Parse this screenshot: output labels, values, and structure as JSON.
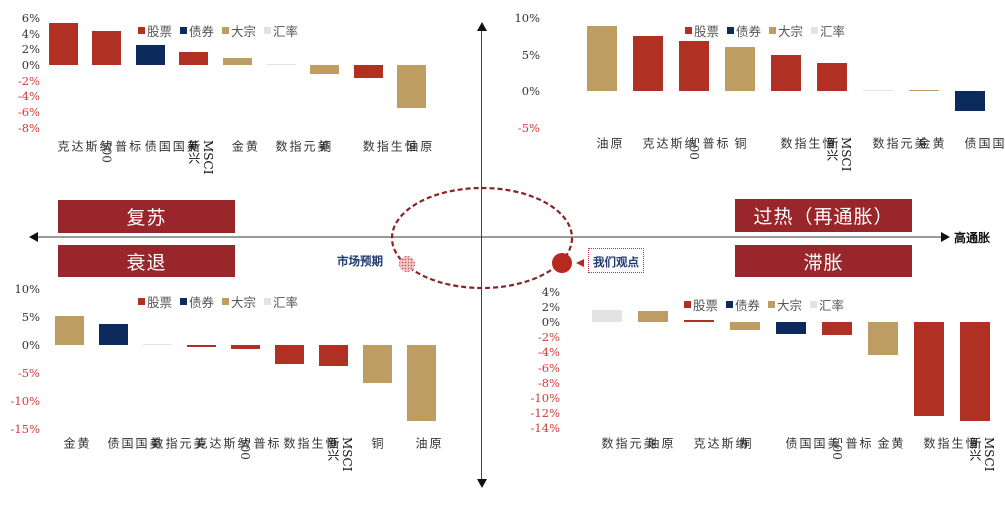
{
  "colors": {
    "stock": "#b03024",
    "bond": "#0d2a5c",
    "commodity": "#bd9d62",
    "fx": "#e3e3e3",
    "phase_bg": "#98262a",
    "neg_tick": "#d0393b",
    "pos_tick": "#333333",
    "ellipse": "#8b2226",
    "view_label": "#1f3a6e"
  },
  "axes": {
    "x_right_label": "高通胀"
  },
  "phases": {
    "recovery": "复苏",
    "overheat": "过热（再通胀）",
    "recession": "衰退",
    "stagflation": "滞胀"
  },
  "annotations": {
    "market_expectation": "市场预期",
    "our_view": "我们观点"
  },
  "legend": [
    {
      "label": "股票",
      "key": "stock"
    },
    {
      "label": "债券",
      "key": "bond"
    },
    {
      "label": "大宗",
      "key": "commodity"
    },
    {
      "label": "汇率",
      "key": "fx"
    }
  ],
  "chart_data": [
    {
      "type": "bar",
      "title": "复苏",
      "categories": [
        "纳斯达克",
        "标普500",
        "美国国债",
        "MSCI新兴",
        "黄金",
        "美元指数",
        "铜",
        "恒生指数",
        "原油"
      ],
      "asset_class": [
        "stock",
        "stock",
        "bond",
        "stock",
        "commodity",
        "fx",
        "commodity",
        "stock",
        "commodity"
      ],
      "values": [
        5.3,
        4.3,
        2.5,
        1.7,
        0.9,
        0.1,
        -1.2,
        -1.6,
        -5.5
      ],
      "yticks": [
        "6%",
        "4%",
        "2%",
        "0%",
        "-2%",
        "-4%",
        "-6%",
        "-8%"
      ],
      "ylim": [
        -8,
        6
      ],
      "xlabel": "",
      "ylabel": "",
      "legend_position": "top"
    },
    {
      "type": "bar",
      "title": "过热（再通胀）",
      "categories": [
        "原油",
        "纳斯达克",
        "标普500",
        "铜",
        "恒生指数",
        "MSCI新兴",
        "美元指数",
        "黄金",
        "美国国债"
      ],
      "asset_class": [
        "commodity",
        "stock",
        "stock",
        "commodity",
        "stock",
        "stock",
        "fx",
        "commodity",
        "bond"
      ],
      "values": [
        8.9,
        7.6,
        6.9,
        6.0,
        5.0,
        3.9,
        0.2,
        0.1,
        -2.7
      ],
      "yticks": [
        "10%",
        "5%",
        "0%",
        "-5%"
      ],
      "ylim": [
        -5,
        10
      ],
      "xlabel": "",
      "ylabel": "",
      "legend_position": "top"
    },
    {
      "type": "bar",
      "title": "衰退",
      "categories": [
        "黄金",
        "美国国债",
        "美元指数",
        "纳斯达克",
        "标普500",
        "恒生指数",
        "MSCI新兴",
        "铜",
        "原油"
      ],
      "asset_class": [
        "commodity",
        "bond",
        "fx",
        "stock",
        "stock",
        "stock",
        "stock",
        "commodity",
        "commodity"
      ],
      "values": [
        5.2,
        3.8,
        0.1,
        -0.2,
        -0.8,
        -3.4,
        -3.8,
        -6.8,
        -13.5
      ],
      "yticks": [
        "10%",
        "5%",
        "0%",
        "-5%",
        "-10%",
        "-15%"
      ],
      "ylim": [
        -15,
        10
      ],
      "xlabel": "",
      "ylabel": "",
      "legend_position": "top"
    },
    {
      "type": "bar",
      "title": "滞胀",
      "categories": [
        "美元指数",
        "原油",
        "纳斯达克",
        "铜",
        "美国国债",
        "标普500",
        "黄金",
        "恒生指数",
        "MSCI新兴"
      ],
      "asset_class": [
        "fx",
        "commodity",
        "stock",
        "commodity",
        "bond",
        "stock",
        "commodity",
        "stock",
        "stock"
      ],
      "values": [
        1.6,
        1.4,
        0.2,
        -1.0,
        -1.6,
        -1.7,
        -4.4,
        -12.4,
        -13.0
      ],
      "yticks": [
        "4%",
        "2%",
        "0%",
        "-2%",
        "-4%",
        "-6%",
        "-8%",
        "-10%",
        "-12%",
        "-14%"
      ],
      "ylim": [
        -14,
        4
      ],
      "xlabel": "",
      "ylabel": "",
      "legend_position": "top"
    }
  ]
}
